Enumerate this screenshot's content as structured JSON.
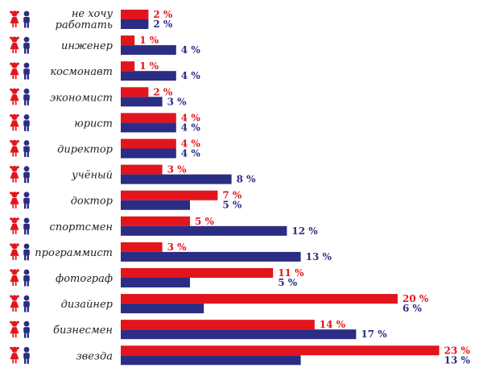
{
  "chart_data": {
    "type": "bar",
    "orientation": "horizontal",
    "title": "",
    "xlabel": "",
    "ylabel": "",
    "unit": "%",
    "xlim": [
      0,
      23
    ],
    "categories": [
      "не хочу работать",
      "инженер",
      "космонавт",
      "экономист",
      "юрист",
      "директор",
      "учёный",
      "доктор",
      "спортсмен",
      "программист",
      "фотограф",
      "дизайнер",
      "бизнесмен",
      "звезда"
    ],
    "series": [
      {
        "values": [
          2,
          1,
          1,
          2,
          4,
          4,
          3,
          7,
          5,
          3,
          11,
          20,
          14,
          23
        ]
      },
      {
        "values": [
          2,
          4,
          4,
          3,
          4,
          4,
          8,
          5,
          12,
          13,
          5,
          6,
          17,
          13
        ]
      }
    ],
    "value_labels": [
      [
        "2 %",
        "1 %",
        "1 %",
        "2 %",
        "4 %",
        "4 %",
        "3 %",
        "7 %",
        "5 %",
        "3 %",
        "11 %",
        "20 %",
        "14 %",
        "23 %"
      ],
      [
        "2 %",
        "4 %",
        "4 %",
        "3 %",
        "4 %",
        "4 %",
        "8 %",
        "5 %",
        "12 %",
        "13 %",
        "5 %",
        "6 %",
        "17 %",
        "13 %"
      ]
    ],
    "legend_icons": [
      "girl-icon",
      "boy-icon"
    ],
    "colors": {
      "girls": "#e3141b",
      "boys": "#2b2d84"
    },
    "grid": false
  }
}
